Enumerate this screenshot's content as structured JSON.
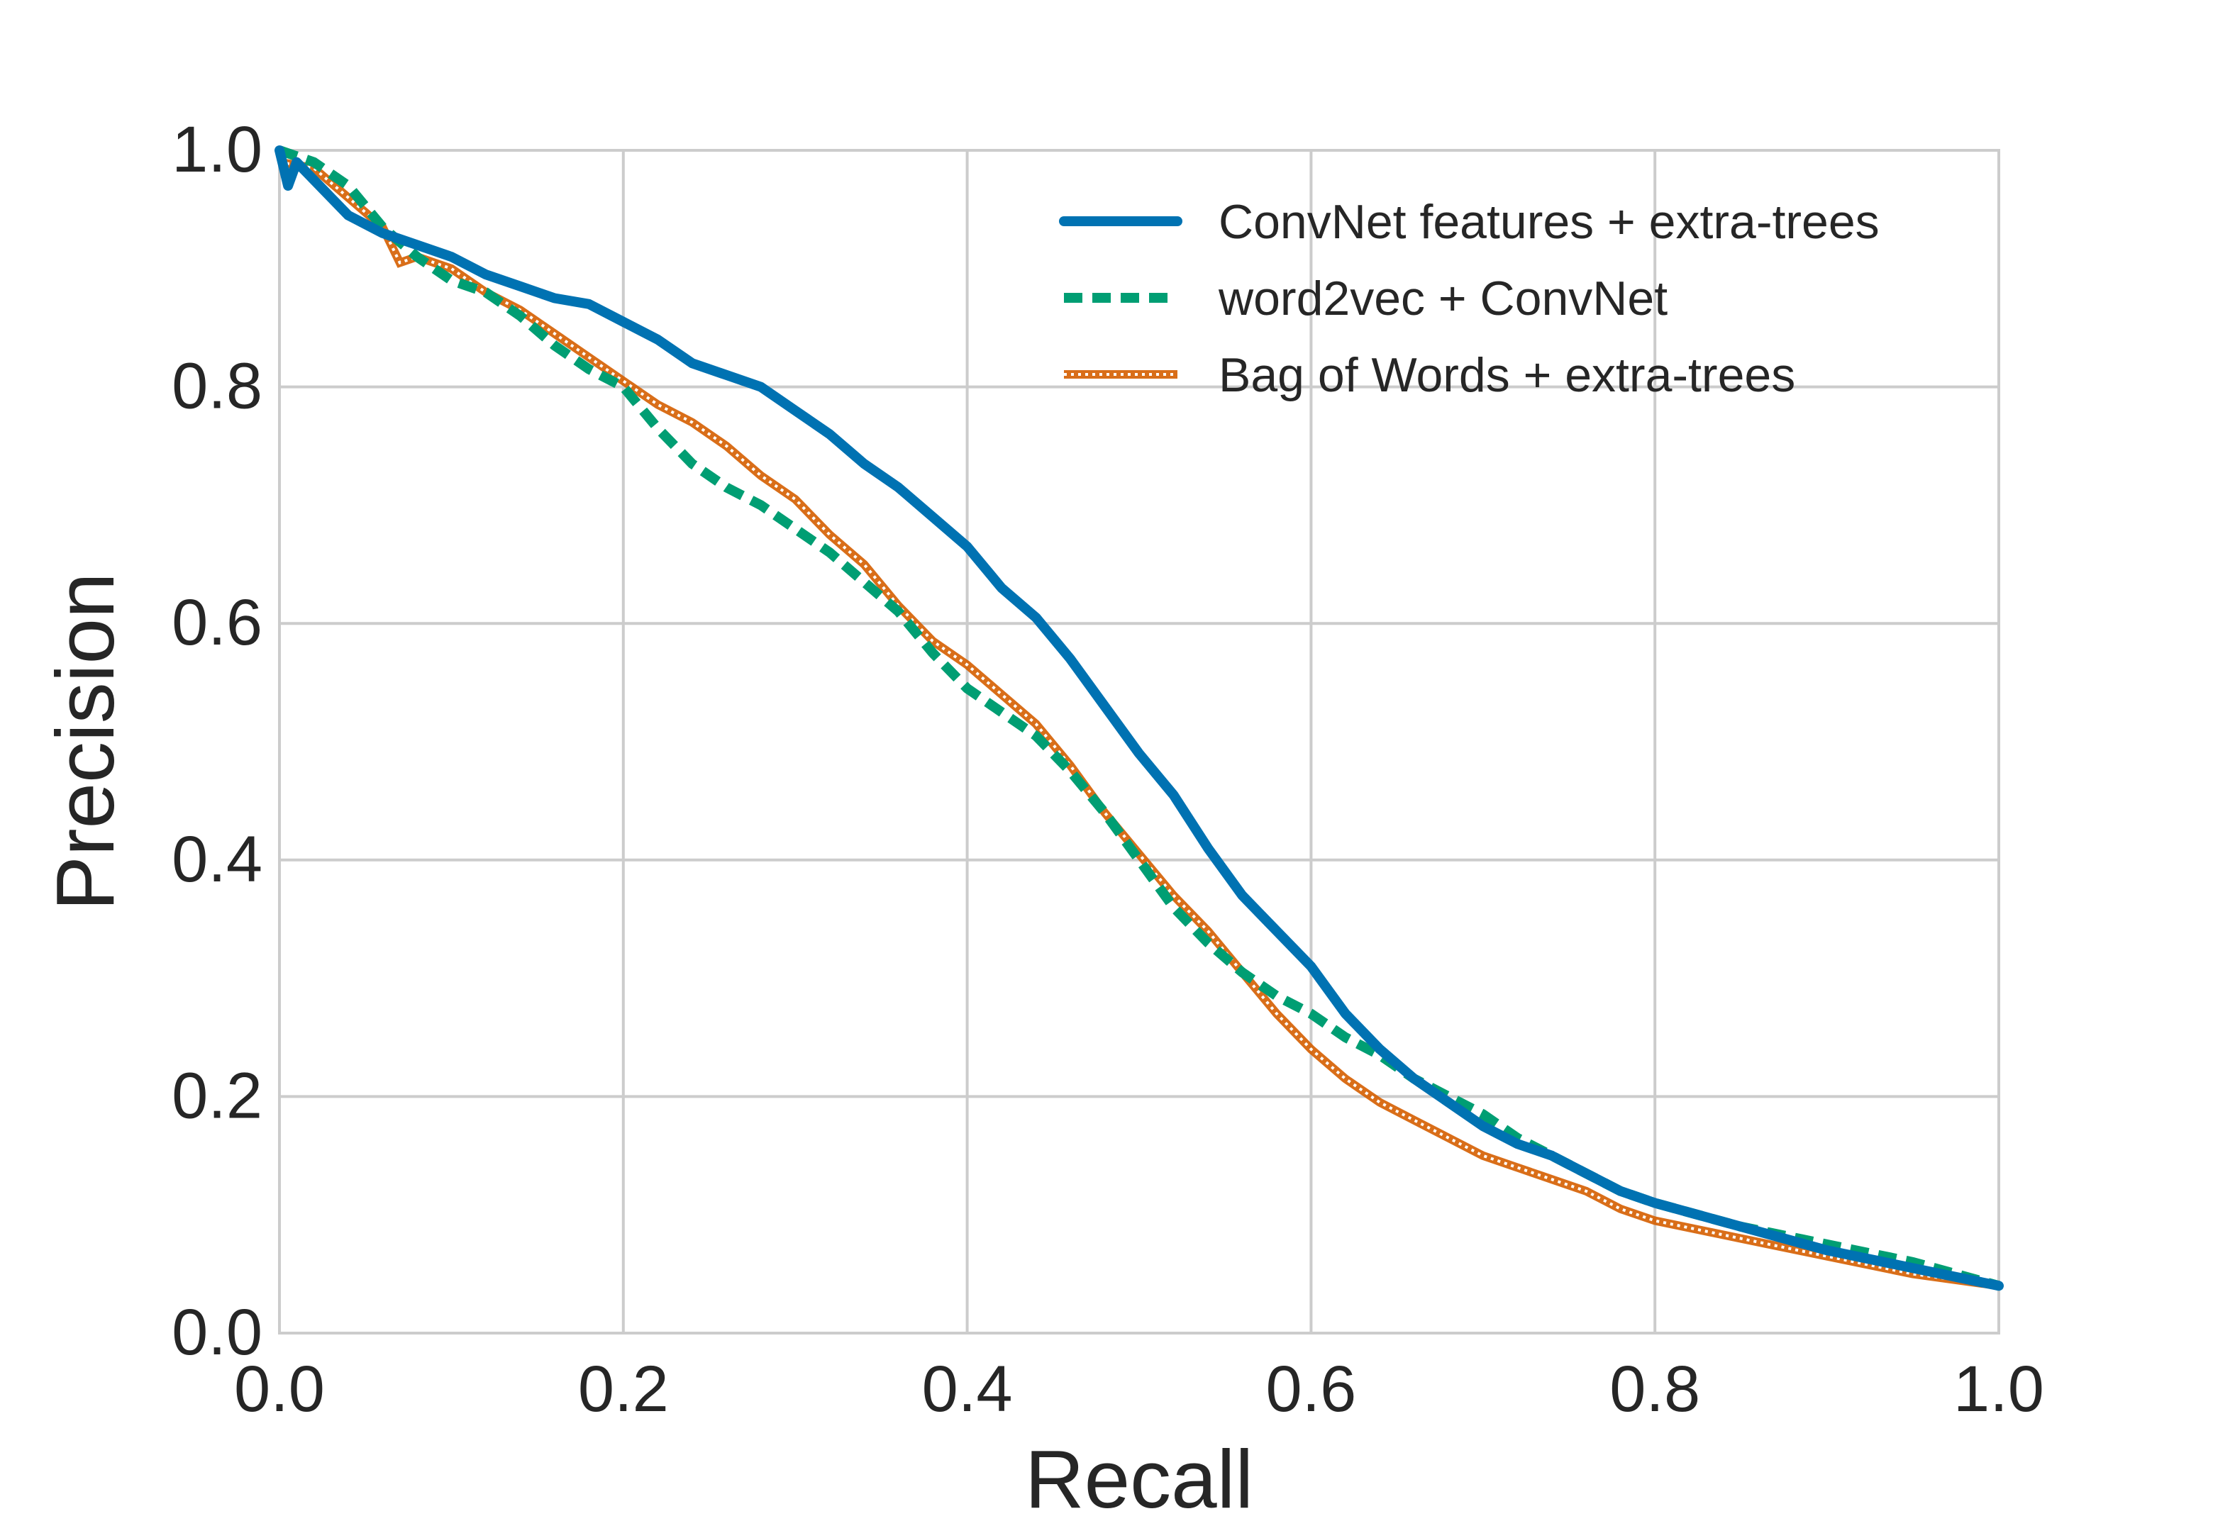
{
  "chart_data": {
    "type": "line",
    "title": "",
    "xlabel": "Recall",
    "ylabel": "Precision",
    "xlim": [
      0.0,
      1.0
    ],
    "ylim": [
      0.0,
      1.0
    ],
    "grid": true,
    "legend_position": "top-right",
    "x_ticks": [
      "0.0",
      "0.2",
      "0.4",
      "0.6",
      "0.8",
      "1.0"
    ],
    "y_ticks": [
      "0.0",
      "0.2",
      "0.4",
      "0.6",
      "0.8",
      "1.0"
    ],
    "series": [
      {
        "name": "ConvNet features + extra-trees",
        "color": "#0072b2",
        "style": "solid",
        "points": [
          [
            0.0,
            1.0
          ],
          [
            0.005,
            0.97
          ],
          [
            0.01,
            0.99
          ],
          [
            0.02,
            0.975
          ],
          [
            0.04,
            0.945
          ],
          [
            0.06,
            0.93
          ],
          [
            0.08,
            0.92
          ],
          [
            0.1,
            0.91
          ],
          [
            0.12,
            0.895
          ],
          [
            0.14,
            0.885
          ],
          [
            0.16,
            0.875
          ],
          [
            0.18,
            0.87
          ],
          [
            0.2,
            0.855
          ],
          [
            0.22,
            0.84
          ],
          [
            0.24,
            0.82
          ],
          [
            0.26,
            0.81
          ],
          [
            0.28,
            0.8
          ],
          [
            0.3,
            0.78
          ],
          [
            0.32,
            0.76
          ],
          [
            0.34,
            0.735
          ],
          [
            0.36,
            0.715
          ],
          [
            0.38,
            0.69
          ],
          [
            0.4,
            0.665
          ],
          [
            0.42,
            0.63
          ],
          [
            0.44,
            0.605
          ],
          [
            0.46,
            0.57
          ],
          [
            0.48,
            0.53
          ],
          [
            0.5,
            0.49
          ],
          [
            0.52,
            0.455
          ],
          [
            0.54,
            0.41
          ],
          [
            0.56,
            0.37
          ],
          [
            0.58,
            0.34
          ],
          [
            0.6,
            0.31
          ],
          [
            0.62,
            0.27
          ],
          [
            0.64,
            0.24
          ],
          [
            0.66,
            0.215
          ],
          [
            0.68,
            0.195
          ],
          [
            0.7,
            0.175
          ],
          [
            0.72,
            0.16
          ],
          [
            0.74,
            0.15
          ],
          [
            0.76,
            0.135
          ],
          [
            0.78,
            0.12
          ],
          [
            0.8,
            0.11
          ],
          [
            0.85,
            0.09
          ],
          [
            0.9,
            0.07
          ],
          [
            0.95,
            0.055
          ],
          [
            1.0,
            0.04
          ]
        ]
      },
      {
        "name": "word2vec + ConvNet",
        "color": "#009e73",
        "style": "dashed",
        "points": [
          [
            0.0,
            1.0
          ],
          [
            0.02,
            0.99
          ],
          [
            0.04,
            0.97
          ],
          [
            0.06,
            0.935
          ],
          [
            0.08,
            0.91
          ],
          [
            0.1,
            0.89
          ],
          [
            0.12,
            0.88
          ],
          [
            0.14,
            0.86
          ],
          [
            0.16,
            0.835
          ],
          [
            0.18,
            0.815
          ],
          [
            0.2,
            0.8
          ],
          [
            0.22,
            0.765
          ],
          [
            0.24,
            0.735
          ],
          [
            0.26,
            0.715
          ],
          [
            0.28,
            0.7
          ],
          [
            0.3,
            0.68
          ],
          [
            0.32,
            0.66
          ],
          [
            0.34,
            0.635
          ],
          [
            0.36,
            0.61
          ],
          [
            0.38,
            0.575
          ],
          [
            0.4,
            0.545
          ],
          [
            0.42,
            0.525
          ],
          [
            0.44,
            0.505
          ],
          [
            0.46,
            0.475
          ],
          [
            0.48,
            0.44
          ],
          [
            0.5,
            0.4
          ],
          [
            0.52,
            0.36
          ],
          [
            0.54,
            0.33
          ],
          [
            0.56,
            0.305
          ],
          [
            0.58,
            0.285
          ],
          [
            0.6,
            0.27
          ],
          [
            0.62,
            0.25
          ],
          [
            0.64,
            0.235
          ],
          [
            0.66,
            0.215
          ],
          [
            0.68,
            0.2
          ],
          [
            0.7,
            0.185
          ],
          [
            0.72,
            0.165
          ],
          [
            0.74,
            0.15
          ],
          [
            0.76,
            0.135
          ],
          [
            0.78,
            0.12
          ],
          [
            0.8,
            0.11
          ],
          [
            0.85,
            0.09
          ],
          [
            0.9,
            0.075
          ],
          [
            0.95,
            0.06
          ],
          [
            1.0,
            0.04
          ]
        ]
      },
      {
        "name": "Bag of Words + extra-trees",
        "color": "#d55e00",
        "style": "hatched",
        "points": [
          [
            0.0,
            0.99
          ],
          [
            0.02,
            0.985
          ],
          [
            0.04,
            0.96
          ],
          [
            0.06,
            0.935
          ],
          [
            0.07,
            0.905
          ],
          [
            0.08,
            0.91
          ],
          [
            0.1,
            0.9
          ],
          [
            0.12,
            0.88
          ],
          [
            0.14,
            0.865
          ],
          [
            0.16,
            0.845
          ],
          [
            0.18,
            0.825
          ],
          [
            0.2,
            0.805
          ],
          [
            0.22,
            0.785
          ],
          [
            0.24,
            0.77
          ],
          [
            0.26,
            0.75
          ],
          [
            0.28,
            0.725
          ],
          [
            0.3,
            0.705
          ],
          [
            0.32,
            0.675
          ],
          [
            0.34,
            0.65
          ],
          [
            0.36,
            0.615
          ],
          [
            0.38,
            0.585
          ],
          [
            0.4,
            0.565
          ],
          [
            0.42,
            0.54
          ],
          [
            0.44,
            0.515
          ],
          [
            0.46,
            0.48
          ],
          [
            0.48,
            0.44
          ],
          [
            0.5,
            0.405
          ],
          [
            0.52,
            0.37
          ],
          [
            0.54,
            0.34
          ],
          [
            0.56,
            0.305
          ],
          [
            0.58,
            0.27
          ],
          [
            0.6,
            0.24
          ],
          [
            0.62,
            0.215
          ],
          [
            0.64,
            0.195
          ],
          [
            0.66,
            0.18
          ],
          [
            0.68,
            0.165
          ],
          [
            0.7,
            0.15
          ],
          [
            0.72,
            0.14
          ],
          [
            0.74,
            0.13
          ],
          [
            0.76,
            0.12
          ],
          [
            0.78,
            0.105
          ],
          [
            0.8,
            0.095
          ],
          [
            0.85,
            0.08
          ],
          [
            0.9,
            0.065
          ],
          [
            0.95,
            0.05
          ],
          [
            1.0,
            0.04
          ]
        ]
      }
    ]
  }
}
